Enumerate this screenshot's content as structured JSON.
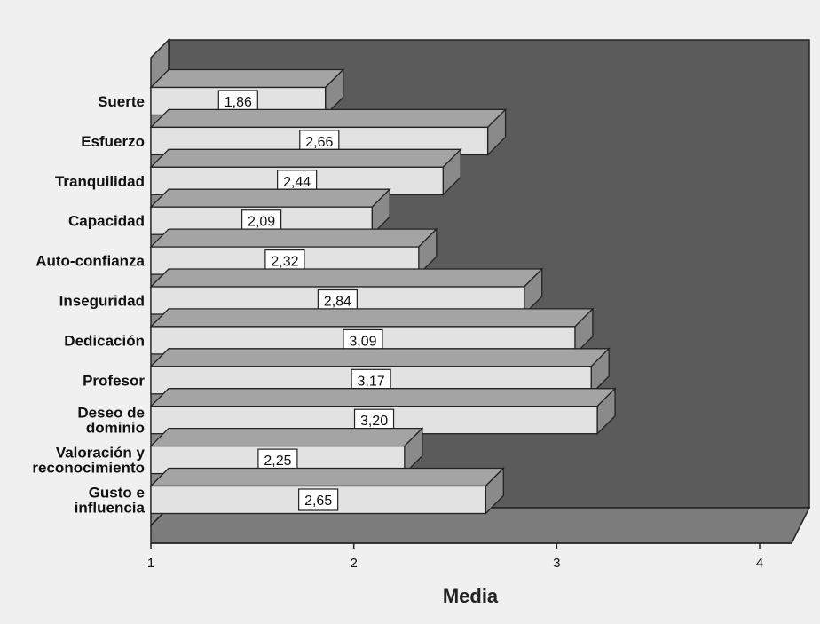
{
  "chart_data": {
    "type": "bar",
    "orientation": "horizontal",
    "three_d": true,
    "categories": [
      "Suerte",
      "Esfuerzo",
      "Tranquilidad",
      "Capacidad",
      "Auto-confianza",
      "Inseguridad",
      "Dedicación",
      "Profesor",
      "Deseo de dominio",
      "Valoración y reconocimiento",
      "Gusto e influencia"
    ],
    "category_lines": [
      [
        "Suerte"
      ],
      [
        "Esfuerzo"
      ],
      [
        "Tranquilidad"
      ],
      [
        "Capacidad"
      ],
      [
        "Auto-confianza"
      ],
      [
        "Inseguridad"
      ],
      [
        "Dedicación"
      ],
      [
        "Profesor"
      ],
      [
        "Deseo de",
        "dominio"
      ],
      [
        "Valoración y",
        "reconocimiento"
      ],
      [
        "Gusto e",
        "influencia"
      ]
    ],
    "values": [
      1.86,
      2.66,
      2.44,
      2.09,
      2.32,
      2.84,
      3.09,
      3.17,
      3.2,
      2.25,
      2.65
    ],
    "value_labels": [
      "1,86",
      "2,66",
      "2,44",
      "2,09",
      "2,32",
      "2,84",
      "3,09",
      "3,17",
      "3,20",
      "2,25",
      "2,65"
    ],
    "xlabel": "Media",
    "ylabel": "",
    "xlim": [
      1,
      4
    ],
    "xticks": [
      1,
      2,
      3,
      4
    ],
    "xtick_labels": [
      "1",
      "2",
      "3",
      "4"
    ],
    "grid": false,
    "colors": {
      "bar_face": "#e2e2e2",
      "bar_top": "#a4a4a4",
      "bar_side": "#8a8a8a",
      "back_wall": "#5b5b5b",
      "floor": "#7c7c7c",
      "left_wall": "#8e8e8e",
      "background": "#f0f0f0"
    }
  }
}
